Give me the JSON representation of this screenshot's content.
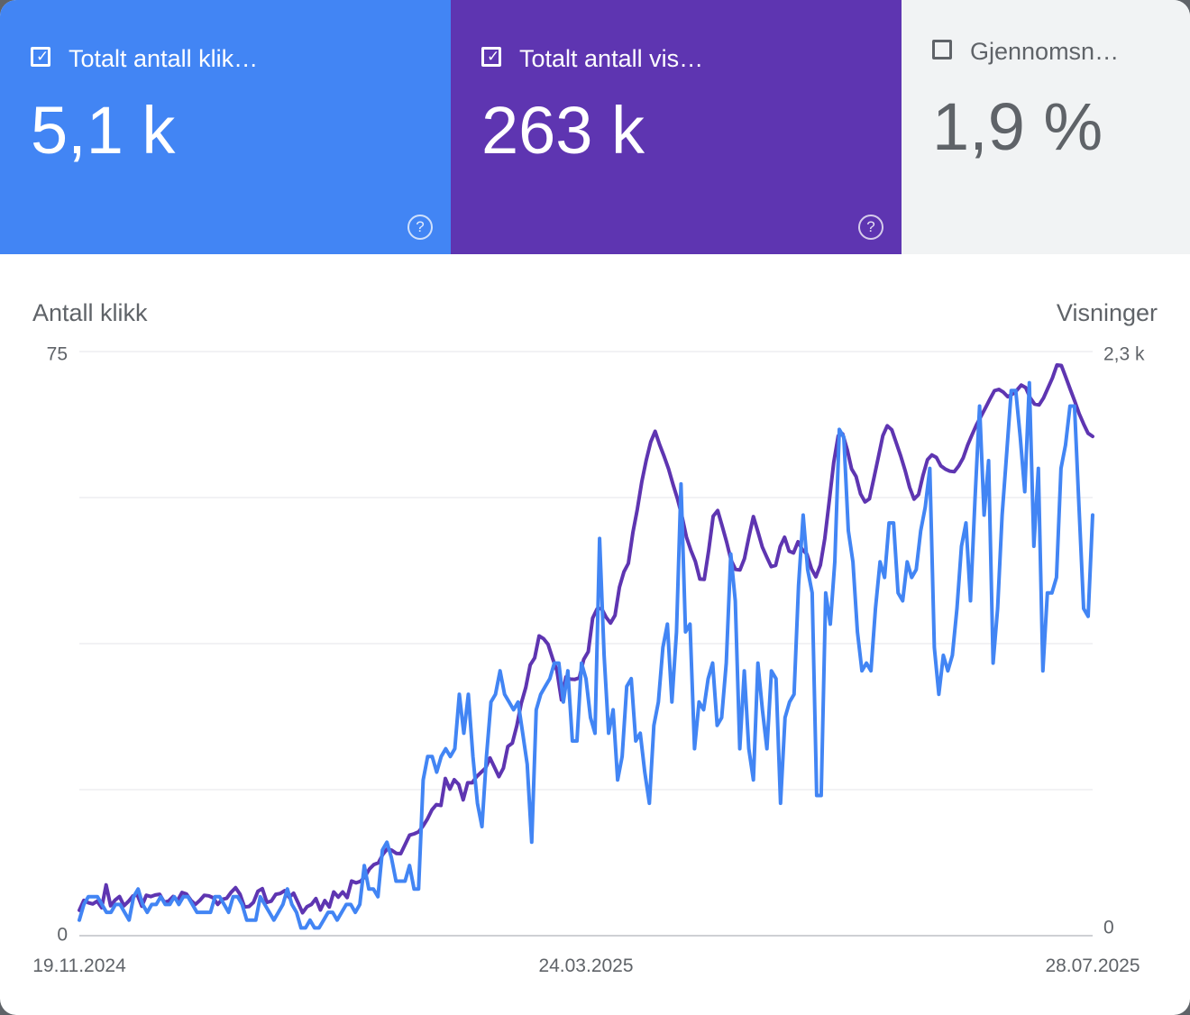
{
  "tiles": {
    "clicks": {
      "label": "Totalt antall klik…",
      "value": "5,1 k",
      "checked": true,
      "help": "?",
      "color": "#4285f4"
    },
    "impressions": {
      "label": "Totalt antall vis…",
      "value": "263 k",
      "checked": true,
      "help": "?",
      "color": "#5e35b1"
    },
    "ctr": {
      "label": "Gjennomsn…",
      "value": "1,9 %",
      "checked": false,
      "color": "#f1f3f4"
    }
  },
  "chart_data": {
    "type": "line",
    "x_start": "19.11.2024",
    "x_mid": "24.03.2025",
    "x_end": "28.07.2025",
    "x_ticks": [
      "19.11.2024",
      "24.03.2025",
      "28.07.2025"
    ],
    "y_left": {
      "label": "Antall klikk",
      "min": 0,
      "max": 75,
      "tick_labels": [
        "0",
        "75"
      ]
    },
    "y_right": {
      "label": "Visninger",
      "min": 0,
      "max": 2300,
      "tick_labels": [
        "0",
        "2,3 k"
      ]
    },
    "grid": true,
    "legend": "none",
    "series": [
      {
        "name": "Totalt antall klikk",
        "axis": "left",
        "color": "#4285f4",
        "values": [
          2,
          4,
          5,
          5,
          5,
          4,
          3,
          3,
          4,
          4,
          3,
          2,
          5,
          6,
          4,
          3,
          4,
          4,
          5,
          4,
          4,
          5,
          4,
          5,
          5,
          4,
          3,
          3,
          3,
          3,
          5,
          5,
          4,
          3,
          5,
          5,
          4,
          2,
          2,
          2,
          5,
          4,
          3,
          2,
          3,
          4,
          6,
          4,
          3,
          1,
          1,
          2,
          1,
          1,
          2,
          3,
          3,
          2,
          3,
          4,
          4,
          3,
          4,
          9,
          6,
          6,
          5,
          11,
          12,
          10,
          7,
          7,
          7,
          9,
          6,
          6,
          20,
          23,
          23,
          21,
          23,
          24,
          23,
          24,
          31,
          26,
          31,
          23,
          17,
          14,
          23,
          30,
          31,
          34,
          31,
          30,
          29,
          30,
          26,
          22,
          12,
          29,
          31,
          32,
          33,
          35,
          35,
          30,
          34,
          25,
          25,
          35,
          33,
          28,
          26,
          51,
          36,
          26,
          29,
          20,
          23,
          32,
          33,
          25,
          26,
          21,
          17,
          27,
          30,
          37,
          40,
          30,
          39,
          58,
          39,
          40,
          24,
          30,
          29,
          33,
          35,
          27,
          28,
          35,
          49,
          43,
          24,
          34,
          24,
          20,
          35,
          29,
          24,
          34,
          33,
          17,
          28,
          30,
          31,
          45,
          54,
          47,
          44,
          18,
          18,
          44,
          40,
          48,
          65,
          64,
          52,
          48,
          39,
          34,
          35,
          34,
          42,
          48,
          46,
          53,
          53,
          44,
          43,
          48,
          46,
          47,
          52,
          55,
          60,
          37,
          31,
          36,
          34,
          36,
          42,
          50,
          53,
          43,
          56,
          68,
          54,
          61,
          35,
          42,
          54,
          62,
          70,
          70,
          64,
          57,
          71,
          50,
          60,
          34,
          44,
          44,
          46,
          60,
          63,
          68,
          68,
          55,
          42,
          41,
          54
        ]
      },
      {
        "name": "Totalt antall visninger",
        "axis": "right",
        "color": "#5e35b1",
        "values": [
          100,
          139,
          130,
          125,
          136,
          110,
          200,
          118,
          140,
          154,
          118,
          135,
          156,
          160,
          116,
          159,
          154,
          160,
          163,
          132,
          136,
          154,
          138,
          170,
          164,
          139,
          123,
          139,
          159,
          157,
          149,
          123,
          143,
          147,
          171,
          189,
          163,
          113,
          115,
          131,
          175,
          185,
          131,
          136,
          163,
          166,
          177,
          151,
          167,
          130,
          90,
          114,
          123,
          146,
          101,
          138,
          113,
          172,
          152,
          172,
          150,
          215,
          208,
          214,
          233,
          263,
          280,
          287,
          320,
          342,
          336,
          324,
          323,
          360,
          396,
          401,
          409,
          432,
          460,
          496,
          516,
          513,
          619,
          577,
          614,
          595,
          535,
          602,
          602,
          626,
          643,
          660,
          700,
          663,
          626,
          660,
          745,
          758,
          827,
          915,
          977,
          1066,
          1094,
          1180,
          1169,
          1147,
          1092,
          1043,
          928,
          1018,
          1010,
          1009,
          1015,
          1088,
          1118,
          1250,
          1287,
          1288,
          1254,
          1231,
          1261,
          1372,
          1433,
          1466,
          1587,
          1678,
          1787,
          1872,
          1944,
          1986,
          1933,
          1887,
          1838,
          1776,
          1720,
          1651,
          1570,
          1517,
          1474,
          1404,
          1403,
          1519,
          1652,
          1674,
          1614,
          1550,
          1479,
          1442,
          1440,
          1485,
          1570,
          1650,
          1592,
          1530,
          1491,
          1453,
          1458,
          1532,
          1569,
          1514,
          1507,
          1551,
          1520,
          1502,
          1445,
          1413,
          1459,
          1564,
          1713,
          1863,
          1968,
          1976,
          1915,
          1838,
          1808,
          1740,
          1708,
          1720,
          1802,
          1884,
          1969,
          2008,
          1992,
          1941,
          1889,
          1832,
          1765,
          1719,
          1737,
          1812,
          1874,
          1893,
          1883,
          1850,
          1837,
          1829,
          1827,
          1850,
          1881,
          1932,
          1973,
          2013,
          2045,
          2079,
          2113,
          2146,
          2151,
          2140,
          2122,
          2132,
          2147,
          2168,
          2158,
          2118,
          2093,
          2090,
          2117,
          2157,
          2196,
          2247,
          2245,
          2198,
          2151,
          2104,
          2055,
          2014,
          1978,
          1966
        ]
      }
    ]
  }
}
